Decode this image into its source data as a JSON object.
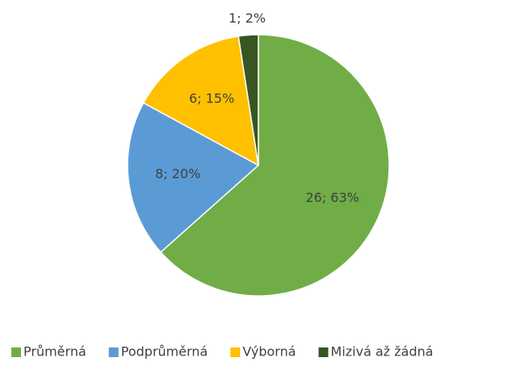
{
  "chart_data": {
    "type": "pie",
    "categories": [
      "Průměrná",
      "Podprůměrná",
      "Výborná",
      "Mizivá až žádná"
    ],
    "values": [
      26,
      8,
      6,
      1
    ],
    "value_labels": [
      "26; 63%",
      "8; 20%",
      "6; 15%",
      "1; 2%"
    ],
    "colors": [
      "#70ad47",
      "#5b9bd5",
      "#ffc000",
      "#375623"
    ],
    "legend": "bottom"
  }
}
